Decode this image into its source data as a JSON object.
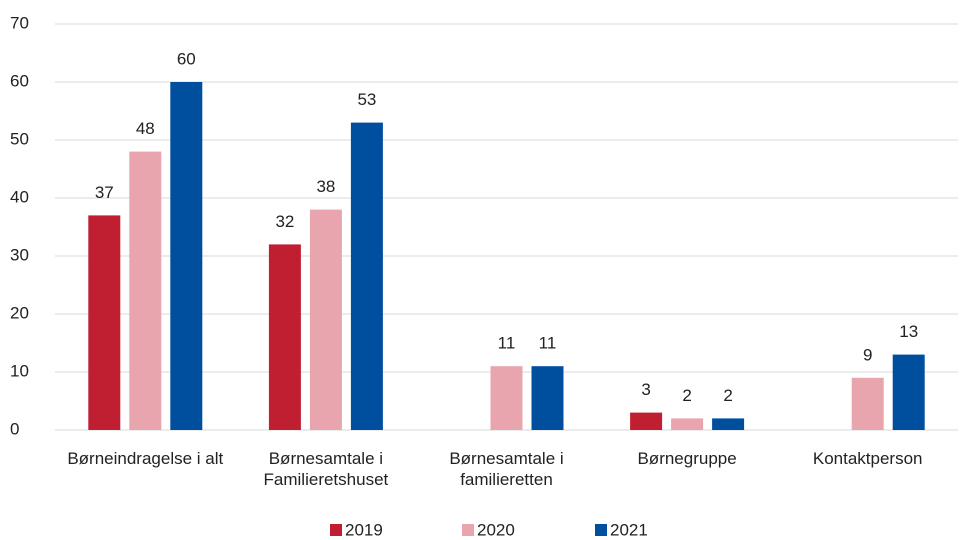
{
  "chart_data": {
    "type": "bar",
    "categories": [
      "Børneindragelse i alt",
      "Børnesamtale i Familieretshuset",
      "Børnesamtale i familieretten",
      "Børnegruppe",
      "Kontaktperson"
    ],
    "series": [
      {
        "name": "2019",
        "color": "#c01f32",
        "values": [
          37,
          32,
          null,
          3,
          null
        ]
      },
      {
        "name": "2020",
        "color": "#e8a5ad",
        "values": [
          48,
          38,
          11,
          2,
          9
        ]
      },
      {
        "name": "2021",
        "color": "#004f9f",
        "values": [
          60,
          53,
          11,
          2,
          13
        ]
      }
    ],
    "ylim": [
      0,
      70
    ],
    "yticks": [
      0,
      10,
      20,
      30,
      40,
      50,
      60,
      70
    ],
    "grid": true,
    "legend": "bottom"
  }
}
